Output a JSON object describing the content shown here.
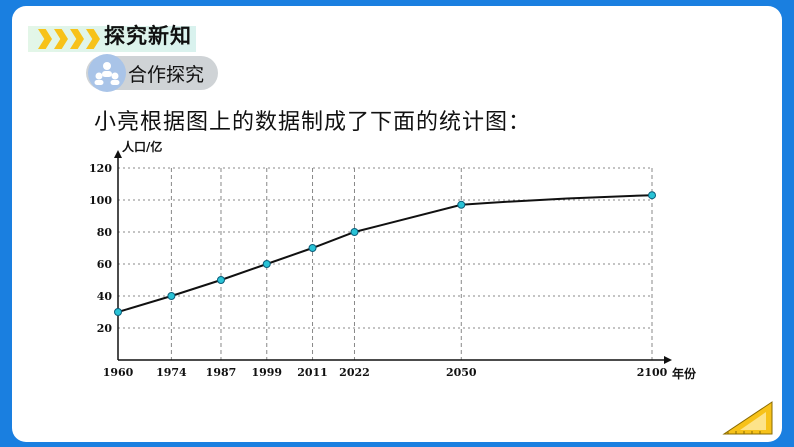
{
  "header": {
    "section_title": "探究新知",
    "subsection_label": "合作探究"
  },
  "intro_text": "小亮根据图上的数据制成了下面的统计图：",
  "colors": {
    "background": "#1a7fe0",
    "line": "#111111",
    "marker": "#29c3d6",
    "grid": "#888888",
    "accent": "#f7c21a"
  },
  "icons": {
    "header": "chevrons-icon",
    "subsection": "people-icon",
    "corner": "ruler-triangle-icon"
  },
  "chart_data": {
    "type": "line",
    "title": "",
    "xlabel": "年份",
    "ylabel": "人口/亿",
    "x": [
      1960,
      1974,
      1987,
      1999,
      2011,
      2022,
      2050,
      2100
    ],
    "values": [
      30,
      40,
      50,
      60,
      70,
      80,
      97,
      103
    ],
    "yticks": [
      20,
      40,
      60,
      80,
      100,
      120
    ],
    "ylim": [
      0,
      120
    ],
    "xlim": [
      1960,
      2100
    ],
    "grid": "dashed vertical lines at each year, dotted horizontal lines at each y tick",
    "marker": "circle"
  }
}
